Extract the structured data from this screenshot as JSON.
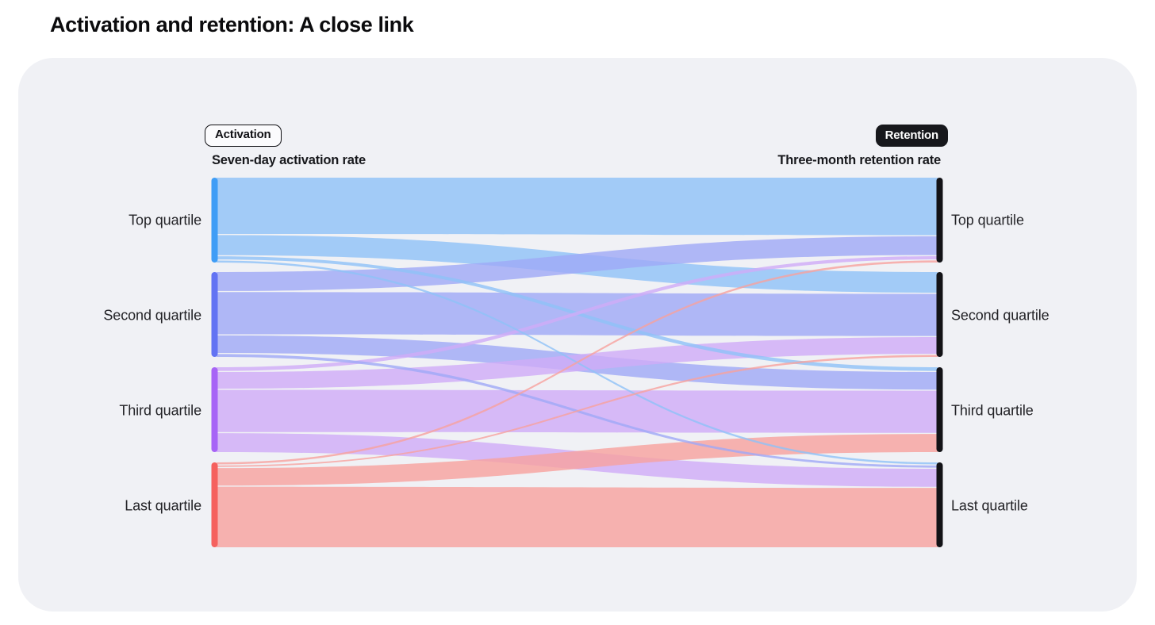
{
  "page": {
    "title": "Activation and retention: A close link"
  },
  "chart_data": {
    "type": "sankey",
    "title": "Activation and retention: A close link",
    "left_column": {
      "badge": "Activation",
      "axis_label": "Seven-day activation rate",
      "categories": [
        "Top quartile",
        "Second quartile",
        "Third quartile",
        "Last quartile"
      ]
    },
    "right_column": {
      "badge": "Retention",
      "axis_label": "Three-month retention rate",
      "categories": [
        "Top quartile",
        "Second quartile",
        "Third quartile",
        "Last quartile"
      ]
    },
    "flows_pct_of_source": [
      {
        "source": "Top quartile",
        "targets": [
          "Top quartile",
          "Second quartile",
          "Third quartile",
          "Last quartile"
        ],
        "values": [
          67,
          25,
          5,
          3
        ]
      },
      {
        "source": "Second quartile",
        "targets": [
          "Top quartile",
          "Second quartile",
          "Third quartile",
          "Last quartile"
        ],
        "values": [
          23,
          51,
          22,
          4
        ]
      },
      {
        "source": "Third quartile",
        "targets": [
          "Top quartile",
          "Second quartile",
          "Third quartile",
          "Last quartile"
        ],
        "values": [
          5,
          21,
          51,
          23
        ]
      },
      {
        "source": "Last quartile",
        "targets": [
          "Top quartile",
          "Second quartile",
          "Third quartile",
          "Last quartile"
        ],
        "values": [
          3,
          3,
          22,
          72
        ]
      }
    ],
    "colors": {
      "left_node_bars": [
        "#3f9df6",
        "#6273f3",
        "#a764f6",
        "#f5615e"
      ],
      "flow_fills": [
        "#8fc2f8",
        "#9fa9f6",
        "#cfabf7",
        "#f7a19d"
      ],
      "right_node_bar": "#131317",
      "card_background": "#f0f1f5"
    },
    "legend_position": "none",
    "grid": "off"
  }
}
